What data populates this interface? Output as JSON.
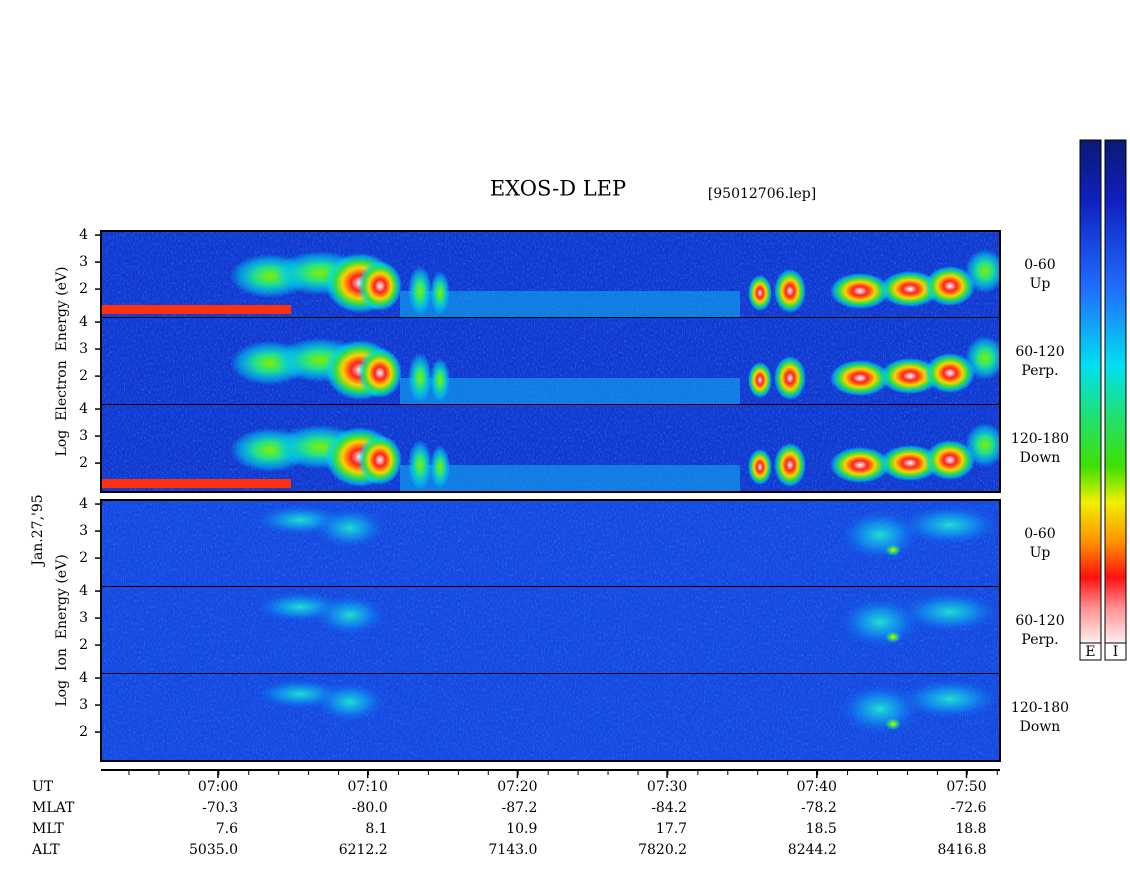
{
  "chart_data": {
    "type": "spectrogram",
    "title": "EXOS-D LEP",
    "subtitle": "[95012706.lep]",
    "date": "Jan.27,'95",
    "ylim": [
      0.93,
      4.15
    ],
    "yticks": [
      2,
      3,
      4
    ],
    "groups": [
      {
        "ylabel": "Log  Electron  Energy (eV)",
        "panels": [
          {
            "label": [
              "0-60",
              "Up"
            ]
          },
          {
            "label": [
              "60-120",
              "Perp."
            ]
          },
          {
            "label": [
              "120-180",
              "Down"
            ]
          }
        ]
      },
      {
        "ylabel": "Log  Ion  Energy (eV)",
        "panels": [
          {
            "label": [
              "0-60",
              "Up"
            ]
          },
          {
            "label": [
              "60-120",
              "Perp."
            ]
          },
          {
            "label": [
              "120-180",
              "Down"
            ]
          }
        ]
      }
    ],
    "colorbars": [
      "E",
      "I"
    ],
    "ephemeris": [
      {
        "name": "UT",
        "values": [
          "07:00",
          "07:10",
          "07:20",
          "07:30",
          "07:40",
          "07:50"
        ]
      },
      {
        "name": "MLAT",
        "values": [
          "-70.3",
          "-80.0",
          "-87.2",
          "-84.2",
          "-78.2",
          "-72.6"
        ]
      },
      {
        "name": "MLT",
        "values": [
          "7.6",
          "8.1",
          "10.9",
          "17.7",
          "18.5",
          "18.8"
        ]
      },
      {
        "name": "ALT",
        "values": [
          "5035.0",
          "6212.2",
          "7143.0",
          "7820.2",
          "8244.2",
          "8416.8"
        ]
      }
    ]
  }
}
